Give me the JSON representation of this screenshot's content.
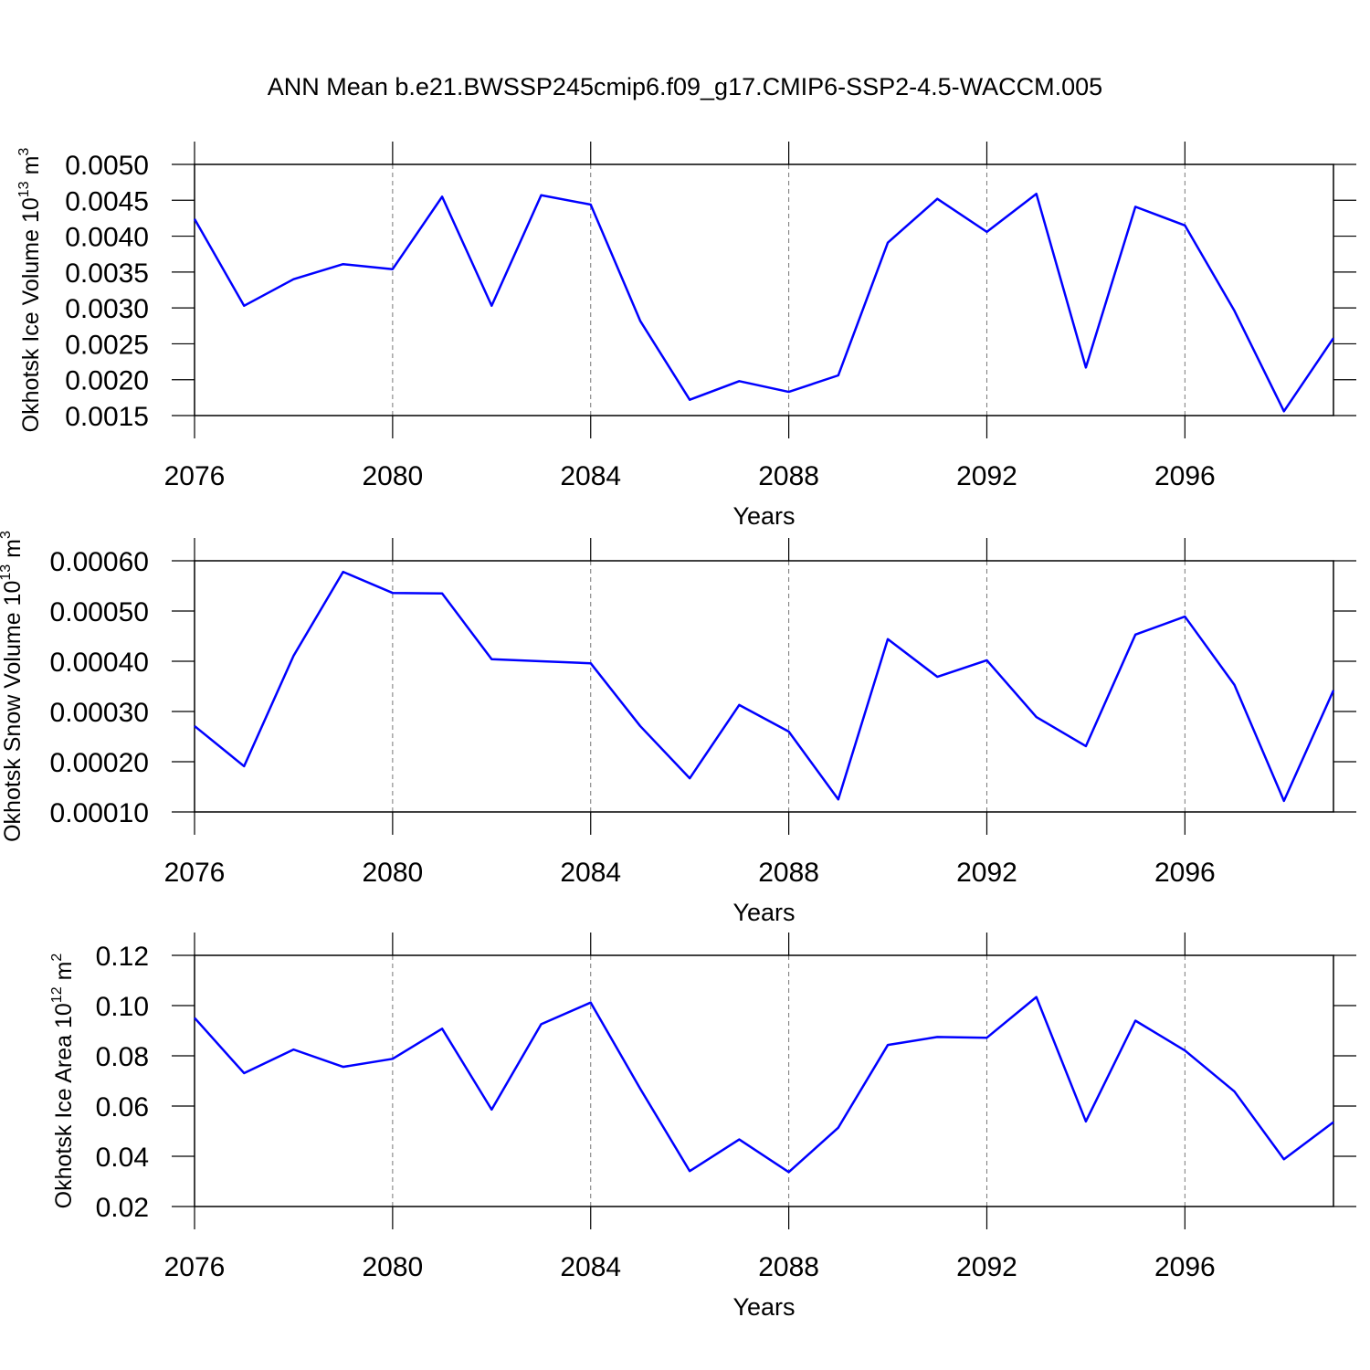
{
  "chart_data": [
    {
      "type": "line",
      "title": "ANN Mean b.e21.BWSSP245cmip6.f09_g17.CMIP6-SSP2-4.5-WACCM.005",
      "ylabel": [
        "Okhotsk Ice Volume 10",
        "13",
        "m",
        "3"
      ],
      "xlabel": "Years",
      "x": [
        2076,
        2077,
        2078,
        2079,
        2080,
        2081,
        2082,
        2083,
        2084,
        2085,
        2086,
        2087,
        2088,
        2089,
        2090,
        2091,
        2092,
        2093,
        2094,
        2095,
        2096,
        2097,
        2098,
        2099
      ],
      "values": [
        0.00424,
        0.00303,
        0.0034,
        0.00361,
        0.00354,
        0.00455,
        0.00303,
        0.00457,
        0.00444,
        0.00282,
        0.00172,
        0.00198,
        0.00183,
        0.00206,
        0.00391,
        0.00452,
        0.00406,
        0.00459,
        0.00217,
        0.00441,
        0.00415,
        0.00296,
        0.00156,
        0.00258
      ],
      "color": "#0000ff",
      "grid": true,
      "xlim": [
        2076,
        2099
      ],
      "xticks": [
        2076,
        2080,
        2084,
        2088,
        2092,
        2096
      ],
      "ylim": [
        0.0015,
        0.005
      ],
      "yticks": [
        0.0015,
        {
          "value": 0.002,
          "label": "0.0020"
        },
        0.0025,
        {
          "value": 0.003,
          "label": "0.0030"
        },
        0.0035,
        {
          "value": 0.004,
          "label": "0.0040"
        },
        0.0045,
        {
          "value": 0.005,
          "label": "0.0050"
        }
      ]
    },
    {
      "type": "line",
      "ylabel": [
        "Okhotsk Snow Volume 10",
        "13",
        "m",
        "3"
      ],
      "xlabel": "Years",
      "x": [
        2076,
        2077,
        2078,
        2079,
        2080,
        2081,
        2082,
        2083,
        2084,
        2085,
        2086,
        2087,
        2088,
        2089,
        2090,
        2091,
        2092,
        2093,
        2094,
        2095,
        2096,
        2097,
        2098,
        2099
      ],
      "values": [
        0.000271,
        0.000191,
        0.000411,
        0.000578,
        0.000536,
        0.000535,
        0.000404,
        0.0004,
        0.000396,
        0.000271,
        0.000167,
        0.000313,
        0.00026,
        0.000125,
        0.000444,
        0.000369,
        0.000402,
        0.000289,
        0.000231,
        0.000453,
        0.000489,
        0.000353,
        0.000122,
        0.000342
      ],
      "color": "#0000ff",
      "grid": true,
      "xlim": [
        2076,
        2099
      ],
      "xticks": [
        2076,
        2080,
        2084,
        2088,
        2092,
        2096
      ],
      "ylim": [
        0.0001,
        0.0006
      ],
      "yticks": [
        {
          "value": 0.0001,
          "label": "0.00010"
        },
        {
          "value": 0.0002,
          "label": "0.00020"
        },
        {
          "value": 0.0003,
          "label": "0.00030"
        },
        {
          "value": 0.0004,
          "label": "0.00040"
        },
        {
          "value": 0.0005,
          "label": "0.00050"
        },
        {
          "value": 0.0006,
          "label": "0.00060"
        }
      ]
    },
    {
      "type": "line",
      "ylabel": [
        "Okhotsk Ice Area 10",
        "12",
        "m",
        "2"
      ],
      "xlabel": "Years",
      "x": [
        2076,
        2077,
        2078,
        2079,
        2080,
        2081,
        2082,
        2083,
        2084,
        2085,
        2086,
        2087,
        2088,
        2089,
        2090,
        2091,
        2092,
        2093,
        2094,
        2095,
        2096,
        2097,
        2098,
        2099
      ],
      "values": [
        0.0951,
        0.0731,
        0.0825,
        0.0756,
        0.0788,
        0.0908,
        0.0586,
        0.0926,
        0.1012,
        0.0669,
        0.0341,
        0.0467,
        0.0337,
        0.0514,
        0.0843,
        0.0875,
        0.0872,
        0.1034,
        0.0539,
        0.094,
        0.0821,
        0.0658,
        0.0388,
        0.0536
      ],
      "color": "#0000ff",
      "grid": true,
      "xlim": [
        2076,
        2099
      ],
      "xticks": [
        2076,
        2080,
        2084,
        2088,
        2092,
        2096
      ],
      "ylim": [
        0.02,
        0.12
      ],
      "yticks": [
        0.02,
        0.04,
        0.06,
        0.08,
        {
          "value": 0.1,
          "label": "0.10"
        },
        0.12
      ]
    }
  ]
}
